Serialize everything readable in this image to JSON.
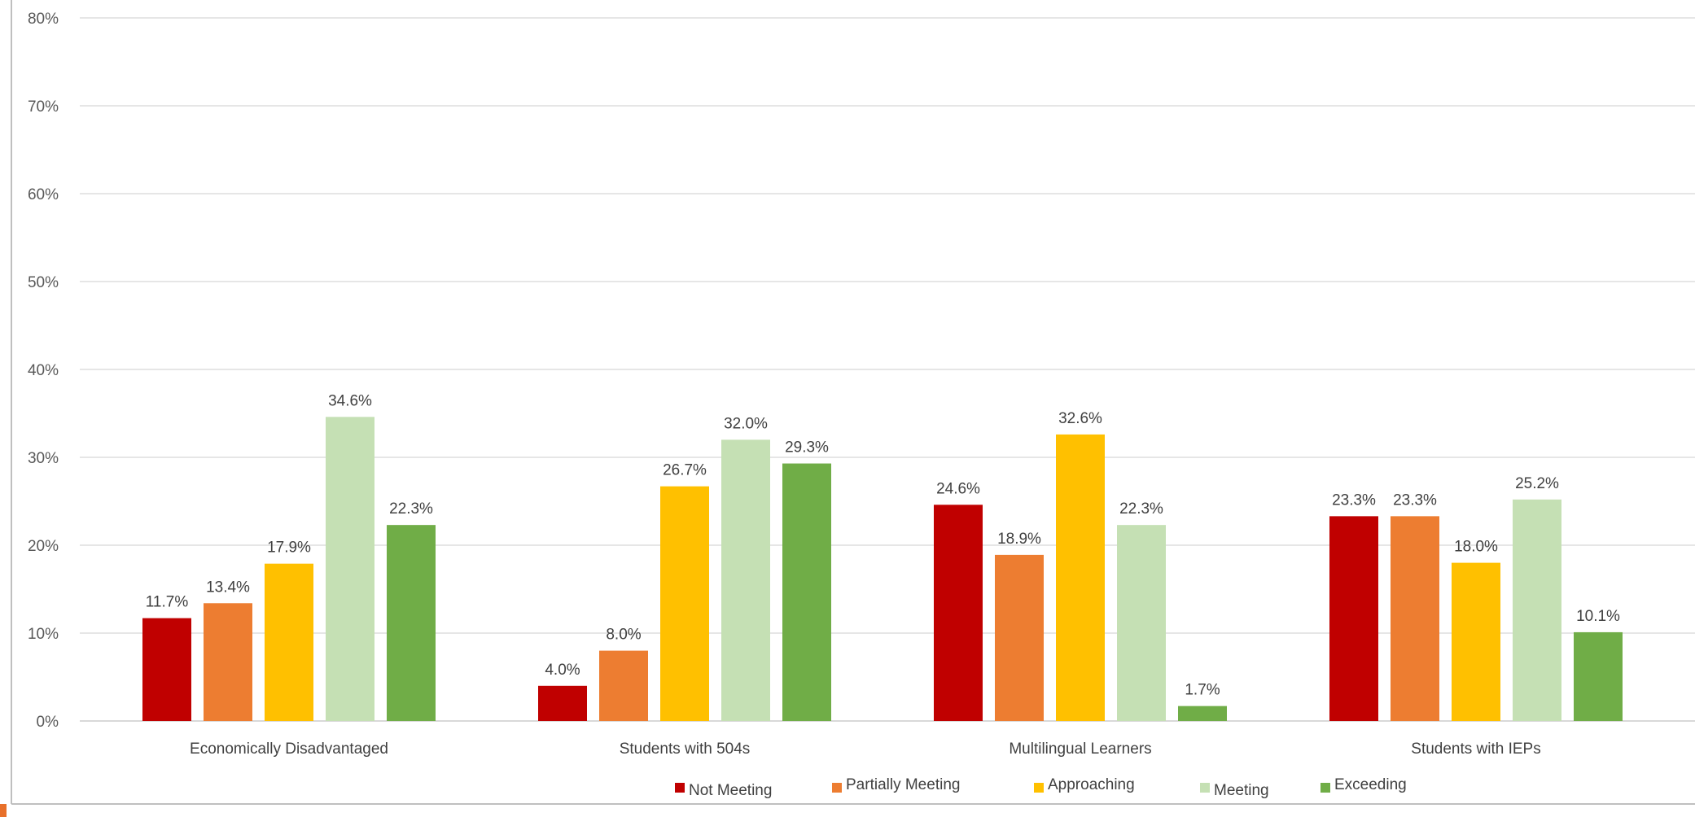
{
  "chart_data": {
    "type": "bar",
    "title": "",
    "xlabel": "",
    "ylabel": "",
    "categories": [
      "Economically Disadvantaged",
      "Students with 504s",
      "Multilingual Learners",
      "Students with IEPs"
    ],
    "ylim": [
      0,
      80
    ],
    "yticks": [
      "0%",
      "10%",
      "20%",
      "30%",
      "40%",
      "50%",
      "60%",
      "70%",
      "80%"
    ],
    "grid": true,
    "legend_position": "bottom",
    "series": [
      {
        "name": "Not Meeting",
        "color": "#c00000",
        "values": [
          11.7,
          4.0,
          24.6,
          23.3
        ],
        "labels": [
          "11.7%",
          "4.0%",
          "24.6%",
          "23.3%"
        ]
      },
      {
        "name": "Partially Meeting",
        "color": "#ed7d31",
        "values": [
          13.4,
          8.0,
          18.9,
          23.3
        ],
        "labels": [
          "13.4%",
          "8.0%",
          "18.9%",
          "23.3%"
        ]
      },
      {
        "name": "Approaching",
        "color": "#ffc000",
        "values": [
          17.9,
          26.7,
          32.6,
          18.0
        ],
        "labels": [
          "17.9%",
          "26.7%",
          "32.6%",
          "18.0%"
        ]
      },
      {
        "name": "Meeting",
        "color": "#c5e0b4",
        "values": [
          34.6,
          32.0,
          22.3,
          25.2
        ],
        "labels": [
          "34.6%",
          "32.0%",
          "22.3%",
          "25.2%"
        ]
      },
      {
        "name": "Exceeding",
        "color": "#70ad47",
        "values": [
          22.3,
          29.3,
          1.7,
          10.1
        ],
        "labels": [
          "22.3%",
          "29.3%",
          "1.7%",
          "10.1%"
        ]
      }
    ]
  }
}
